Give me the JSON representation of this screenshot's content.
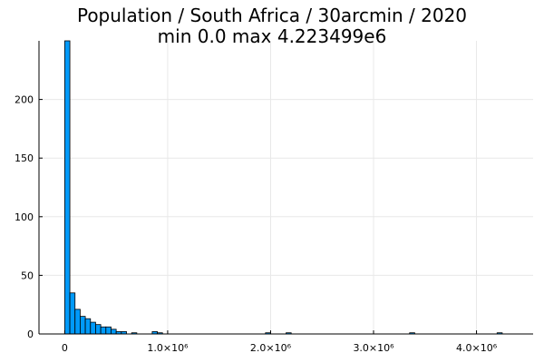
{
  "chart_data": {
    "type": "bar",
    "title": "Population / South Africa / 30arcmin / 2020",
    "subtitle": "min 0.0  max 4.223499e6",
    "xlabel": "",
    "ylabel": "",
    "bin_width": 50000,
    "bins": [
      {
        "x0": 0,
        "count": 250
      },
      {
        "x0": 50000,
        "count": 35
      },
      {
        "x0": 100000,
        "count": 21
      },
      {
        "x0": 150000,
        "count": 15
      },
      {
        "x0": 200000,
        "count": 13
      },
      {
        "x0": 250000,
        "count": 10
      },
      {
        "x0": 300000,
        "count": 8
      },
      {
        "x0": 350000,
        "count": 6
      },
      {
        "x0": 400000,
        "count": 6
      },
      {
        "x0": 450000,
        "count": 4
      },
      {
        "x0": 500000,
        "count": 2
      },
      {
        "x0": 550000,
        "count": 2
      },
      {
        "x0": 650000,
        "count": 1
      },
      {
        "x0": 850000,
        "count": 2
      },
      {
        "x0": 900000,
        "count": 1
      },
      {
        "x0": 1950000,
        "count": 1
      },
      {
        "x0": 2150000,
        "count": 1
      },
      {
        "x0": 3350000,
        "count": 1
      },
      {
        "x0": 4200000,
        "count": 1
      }
    ],
    "xlim": [
      -250000,
      4550000
    ],
    "ylim": [
      0,
      250
    ],
    "x_ticks": [
      {
        "value": 0,
        "label": "0"
      },
      {
        "value": 1000000,
        "label": "1.0×10⁶"
      },
      {
        "value": 2000000,
        "label": "2.0×10⁶"
      },
      {
        "value": 3000000,
        "label": "3.0×10⁶"
      },
      {
        "value": 4000000,
        "label": "4.0×10⁶"
      }
    ],
    "y_ticks": [
      {
        "value": 0,
        "label": "0"
      },
      {
        "value": 50,
        "label": "50"
      },
      {
        "value": 100,
        "label": "100"
      },
      {
        "value": 150,
        "label": "150"
      },
      {
        "value": 200,
        "label": "200"
      }
    ],
    "grid": true,
    "legend": false,
    "colors": {
      "bar_fill": "#009af9",
      "bar_stroke": "#000000",
      "grid": "#e8e8e8",
      "axis": "#000000"
    }
  }
}
